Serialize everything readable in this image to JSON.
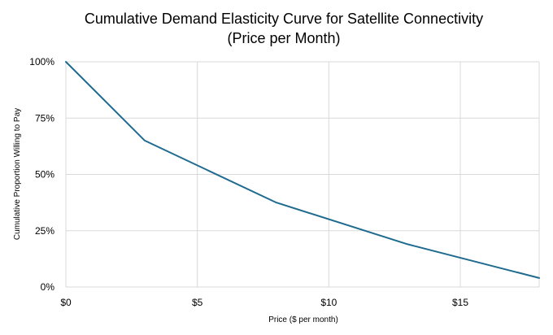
{
  "chart_data": {
    "type": "line",
    "title": "Cumulative Demand Elasticity Curve for Satellite Connectivity",
    "subtitle": "(Price per Month)",
    "xlabel": "Price ($ per month)",
    "ylabel": "Cumulative Proportion Willing to Pay",
    "xlim": [
      0,
      18
    ],
    "ylim": [
      0,
      1
    ],
    "x_ticks": [
      0,
      5,
      10,
      15
    ],
    "x_tick_labels": [
      "$0",
      "$5",
      "$10",
      "$15"
    ],
    "y_ticks": [
      0,
      0.25,
      0.5,
      0.75,
      1
    ],
    "y_tick_labels": [
      "0%",
      "25%",
      "50%",
      "75%",
      "100%"
    ],
    "grid": true,
    "legend": "none",
    "series": [
      {
        "color": "#1f6b8f",
        "x": [
          0,
          3,
          8,
          13,
          18
        ],
        "y": [
          1.0,
          0.65,
          0.375,
          0.19,
          0.04
        ]
      }
    ]
  }
}
